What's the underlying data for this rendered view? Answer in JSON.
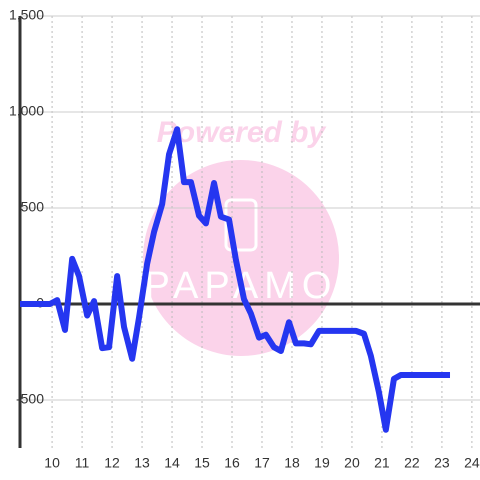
{
  "chart_data": {
    "type": "line",
    "watermark": "Powered by",
    "watermark_logo": "PAPAMO",
    "x": [
      8.93,
      9.93,
      10.17,
      10.43,
      10.67,
      10.9,
      11.17,
      11.4,
      11.67,
      11.9,
      12.17,
      12.4,
      12.67,
      12.9,
      13.17,
      13.4,
      13.67,
      13.9,
      14.17,
      14.4,
      14.63,
      14.9,
      15.13,
      15.4,
      15.63,
      15.9,
      16.13,
      16.4,
      16.63,
      16.9,
      17.13,
      17.4,
      17.63,
      17.9,
      18.13,
      18.4,
      18.63,
      18.9,
      20.13,
      20.4,
      20.63,
      20.9,
      21.13,
      21.4,
      21.63,
      23.27
    ],
    "series": [
      {
        "color": "#2536f0",
        "values": [
          0,
          0,
          20,
          -135,
          235,
          145,
          -60,
          15,
          -230,
          -225,
          145,
          -120,
          -285,
          -70,
          210,
          375,
          520,
          780,
          910,
          635,
          635,
          460,
          420,
          630,
          455,
          440,
          230,
          25,
          -50,
          -175,
          -160,
          -225,
          -245,
          -95,
          -205,
          -205,
          -210,
          -140,
          -140,
          -155,
          -270,
          -460,
          -655,
          -390,
          -370,
          -370
        ]
      }
    ],
    "xlim": [
      8.93,
      24.27
    ],
    "xticks": [
      10,
      11,
      12,
      13,
      14,
      15,
      16,
      17,
      18,
      19,
      20,
      21,
      22,
      23,
      24
    ],
    "ylim": [
      -750,
      1500
    ],
    "yticks": [
      {
        "value": 1500,
        "label": "1,500"
      },
      {
        "value": 1000,
        "label": "1,000"
      },
      500,
      0,
      -500
    ],
    "grid": true
  }
}
